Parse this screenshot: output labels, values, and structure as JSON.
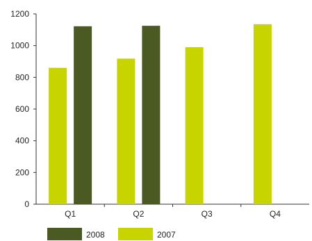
{
  "chart_data": {
    "type": "bar",
    "categories": [
      "Q1",
      "Q2",
      "Q3",
      "Q4"
    ],
    "series": [
      {
        "name": "2007",
        "color": "#c8d400",
        "values": [
          860,
          918,
          990,
          1135
        ]
      },
      {
        "name": "2008",
        "color": "#4a5a22",
        "values": [
          1122,
          1125,
          null,
          null
        ]
      }
    ],
    "ylim": [
      0,
      1200
    ],
    "yticks": [
      0,
      200,
      400,
      600,
      800,
      1000,
      1200
    ],
    "grid": false,
    "legend_position": "bottom-left",
    "legend_order": [
      "2008",
      "2007"
    ]
  }
}
